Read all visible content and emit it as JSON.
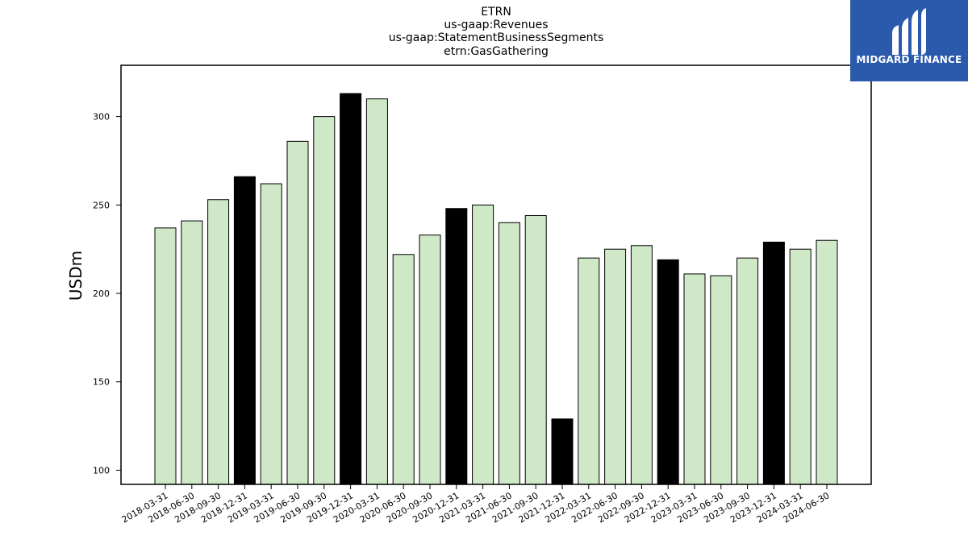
{
  "chart_data": {
    "type": "bar",
    "title_lines": [
      "ETRN",
      "us-gaap:Revenues",
      "us-gaap:StatementBusinessSegments",
      "etrn:GasGathering"
    ],
    "ylabel": "USDm",
    "xlabel": "",
    "ylim": [
      92,
      329
    ],
    "yticks": [
      100,
      150,
      200,
      250,
      300
    ],
    "grid": false,
    "categories": [
      "2018-03-31",
      "2018-06-30",
      "2018-09-30",
      "2018-12-31",
      "2019-03-31",
      "2019-06-30",
      "2019-09-30",
      "2019-12-31",
      "2020-03-31",
      "2020-06-30",
      "2020-09-30",
      "2020-12-31",
      "2021-03-31",
      "2021-06-30",
      "2021-09-30",
      "2021-12-31",
      "2022-03-31",
      "2022-06-30",
      "2022-09-30",
      "2022-12-31",
      "2023-03-31",
      "2023-06-30",
      "2023-09-30",
      "2023-12-31",
      "2024-03-31",
      "2024-06-30"
    ],
    "values": [
      237,
      241,
      253,
      266,
      262,
      286,
      300,
      313,
      310,
      222,
      233,
      248,
      250,
      240,
      244,
      129,
      220,
      225,
      227,
      219,
      211,
      210,
      220,
      229,
      225,
      230
    ],
    "colors": {
      "quarter": "#cfe9c8",
      "year_end": "#000000",
      "edge": "#000000"
    }
  },
  "logo": {
    "text": "MIDGARD FINANCE",
    "bg": "#2b5aad"
  }
}
